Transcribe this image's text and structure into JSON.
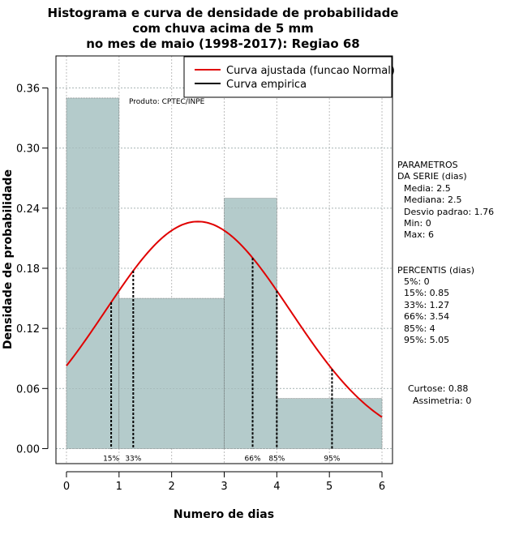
{
  "chart_data": {
    "type": "bar",
    "title_lines": [
      "Histograma e curva de densidade de probabilidade",
      "com chuva acima de 5 mm",
      "no mes de maio (1998-2017): Regiao 68"
    ],
    "xlabel": "Numero de dias",
    "ylabel": "Densidade de probabilidade",
    "xlim": [
      -0.2,
      6.2
    ],
    "ylim": [
      -0.015,
      0.392
    ],
    "x_ticks": [
      0,
      1,
      2,
      3,
      4,
      5,
      6
    ],
    "y_ticks": [
      0,
      0.06,
      0.12,
      0.18,
      0.24,
      0.3,
      0.36
    ],
    "y_tick_labels": [
      "0.00",
      "0.06",
      "0.12",
      "0.18",
      "0.24",
      "0.30",
      "0.36"
    ],
    "bins": [
      {
        "x0": 0,
        "x1": 1,
        "density": 0.35
      },
      {
        "x0": 1,
        "x1": 3,
        "density": 0.15
      },
      {
        "x0": 3,
        "x1": 4,
        "density": 0.25
      },
      {
        "x0": 4,
        "x1": 6,
        "density": 0.05
      }
    ],
    "bar_color": "#b4cbcb",
    "normal_fit": {
      "mean": 2.5,
      "sd": 1.76,
      "x_from": 0,
      "x_to": 6,
      "color": "#e00000"
    },
    "legend": [
      {
        "label": "Curva ajustada (funcao Normal)",
        "color": "#e00000"
      },
      {
        "label": "Curva empirica",
        "color": "#000000"
      }
    ],
    "percentiles": [
      {
        "label": "15%",
        "x": 0.85
      },
      {
        "label": "33%",
        "x": 1.27
      },
      {
        "label": "66%",
        "x": 3.54
      },
      {
        "label": "85%",
        "x": 4
      },
      {
        "label": "95%",
        "x": 5.05
      }
    ],
    "annotation": "Produto: CPTEC/INPE"
  },
  "side_panel": {
    "params_header_1": "PARAMETROS",
    "params_header_2": "DA SERIE (dias)",
    "params": [
      "Media: 2.5",
      "Mediana: 2.5",
      "Desvio padrao: 1.76",
      "Min: 0",
      "Max: 6"
    ],
    "percentis_header": "PERCENTIS (dias)",
    "percentis": [
      "5%: 0",
      "15%: 0.85",
      "33%: 1.27",
      "66%: 3.54",
      "85%: 4",
      "95%: 5.05"
    ],
    "curtose": "Curtose: 0.88",
    "assimetria": "Assimetria: 0"
  }
}
